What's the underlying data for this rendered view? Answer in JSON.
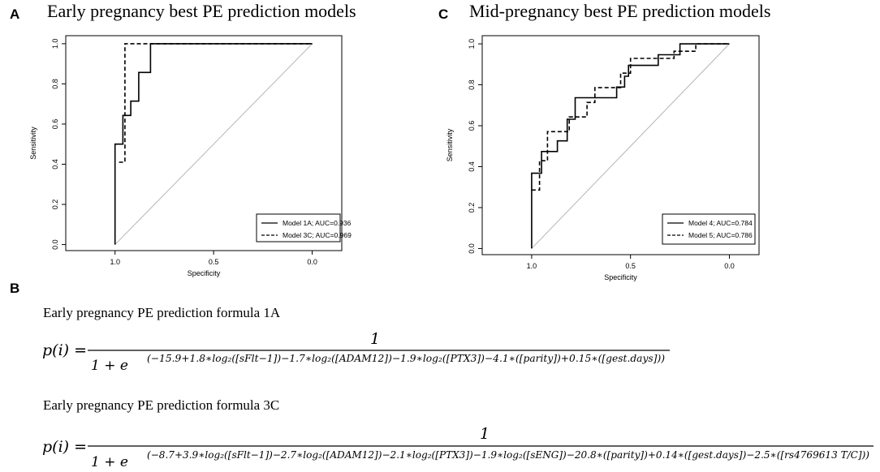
{
  "panel_a": {
    "letter": "A",
    "title": "Early pregnancy best PE prediction models",
    "legend": [
      "Model 1A; AUC=0.936",
      "Model 3C; AUC=0.969"
    ]
  },
  "panel_c": {
    "letter": "C",
    "title": "Mid-pregnancy best PE prediction models",
    "legend": [
      "Model 4; AUC=0.784",
      "Model 5; AUC=0.786"
    ]
  },
  "panel_b": {
    "letter": "B",
    "formula_1a_title": "Early pregnancy PE prediction formula 1A",
    "formula_3c_title": "Early pregnancy PE prediction formula 3C",
    "p_label": "p(i) =",
    "numerator": "1",
    "denom_base": "1 + e",
    "exponent_1a": "(−15.9+1.8∗log₂([sFlt−1])−1.7∗log₂([ADAM12])−1.9∗log₂([PTX3])−4.1∗([parity])+0.15∗([gest.days]))",
    "exponent_3c": "(−8.7+3.9∗log₂([sFlt−1])−2.7∗log₂([ADAM12])−2.1∗log₂([PTX3])−1.9∗log₂([sENG])−20.8∗([parity])+0.14∗([gest.days])−2.5∗([rs4769613 T/C]))"
  },
  "chart_data": [
    {
      "type": "line",
      "panel": "A",
      "title": "Early pregnancy best PE prediction models",
      "xlabel": "Specificity",
      "ylabel": "Sensitivity",
      "xlim": [
        1.25,
        -0.15
      ],
      "ylim": [
        -0.03,
        1.04
      ],
      "xticks": [
        "1.0",
        "0.5",
        "0.0"
      ],
      "xtick_values": [
        1.0,
        0.5,
        0.0
      ],
      "yticks": [
        "0.0",
        "0.2",
        "0.4",
        "0.6",
        "0.8",
        "1.0"
      ],
      "ytick_values": [
        0.0,
        0.2,
        0.4,
        0.6,
        0.8,
        1.0
      ],
      "reference_line": [
        [
          1.0,
          0.0
        ],
        [
          0.0,
          1.0
        ]
      ],
      "series": [
        {
          "name": "Model 1A; AUC=0.936",
          "style": "solid",
          "points": [
            [
              1.0,
              0.0
            ],
            [
              1.0,
              0.5
            ],
            [
              0.96,
              0.5
            ],
            [
              0.96,
              0.643
            ],
            [
              0.92,
              0.643
            ],
            [
              0.92,
              0.714
            ],
            [
              0.88,
              0.714
            ],
            [
              0.88,
              0.857
            ],
            [
              0.82,
              0.857
            ],
            [
              0.82,
              1.0
            ],
            [
              0.0,
              1.0
            ]
          ]
        },
        {
          "name": "Model 3C; AUC=0.969",
          "style": "dashed",
          "points": [
            [
              0.98,
              0.41
            ],
            [
              0.95,
              0.41
            ],
            [
              0.95,
              1.0
            ],
            [
              0.0,
              1.0
            ]
          ]
        }
      ]
    },
    {
      "type": "line",
      "panel": "C",
      "title": "Mid-pregnancy best PE prediction models",
      "xlabel": "Specificity",
      "ylabel": "Sensitivity",
      "xlim": [
        1.25,
        -0.15
      ],
      "ylim": [
        -0.03,
        1.04
      ],
      "xticks": [
        "1.0",
        "0.5",
        "0.0"
      ],
      "xtick_values": [
        1.0,
        0.5,
        0.0
      ],
      "yticks": [
        "0.0",
        "0.2",
        "0.4",
        "0.6",
        "0.8",
        "1.0"
      ],
      "ytick_values": [
        0.0,
        0.2,
        0.4,
        0.6,
        0.8,
        1.0
      ],
      "reference_line": [
        [
          1.0,
          0.0
        ],
        [
          0.0,
          1.0
        ]
      ],
      "series": [
        {
          "name": "Model 4; AUC=0.784",
          "style": "solid",
          "points": [
            [
              1.0,
              0.0
            ],
            [
              1.0,
              0.368
            ],
            [
              0.95,
              0.368
            ],
            [
              0.95,
              0.474
            ],
            [
              0.87,
              0.474
            ],
            [
              0.87,
              0.526
            ],
            [
              0.82,
              0.526
            ],
            [
              0.82,
              0.632
            ],
            [
              0.78,
              0.632
            ],
            [
              0.78,
              0.737
            ],
            [
              0.57,
              0.737
            ],
            [
              0.57,
              0.789
            ],
            [
              0.53,
              0.789
            ],
            [
              0.53,
              0.842
            ],
            [
              0.51,
              0.842
            ],
            [
              0.51,
              0.895
            ],
            [
              0.36,
              0.895
            ],
            [
              0.36,
              0.947
            ],
            [
              0.25,
              0.947
            ],
            [
              0.25,
              1.0
            ],
            [
              0.0,
              1.0
            ]
          ]
        },
        {
          "name": "Model 5; AUC=0.786",
          "style": "dashed",
          "points": [
            [
              1.0,
              0.286
            ],
            [
              0.96,
              0.286
            ],
            [
              0.96,
              0.429
            ],
            [
              0.92,
              0.429
            ],
            [
              0.92,
              0.571
            ],
            [
              0.81,
              0.571
            ],
            [
              0.81,
              0.643
            ],
            [
              0.72,
              0.643
            ],
            [
              0.72,
              0.714
            ],
            [
              0.68,
              0.714
            ],
            [
              0.68,
              0.786
            ],
            [
              0.55,
              0.786
            ],
            [
              0.55,
              0.857
            ],
            [
              0.5,
              0.857
            ],
            [
              0.5,
              0.929
            ],
            [
              0.28,
              0.929
            ],
            [
              0.28,
              0.964
            ],
            [
              0.17,
              0.964
            ],
            [
              0.17,
              1.0
            ],
            [
              0.0,
              1.0
            ]
          ]
        }
      ]
    }
  ]
}
